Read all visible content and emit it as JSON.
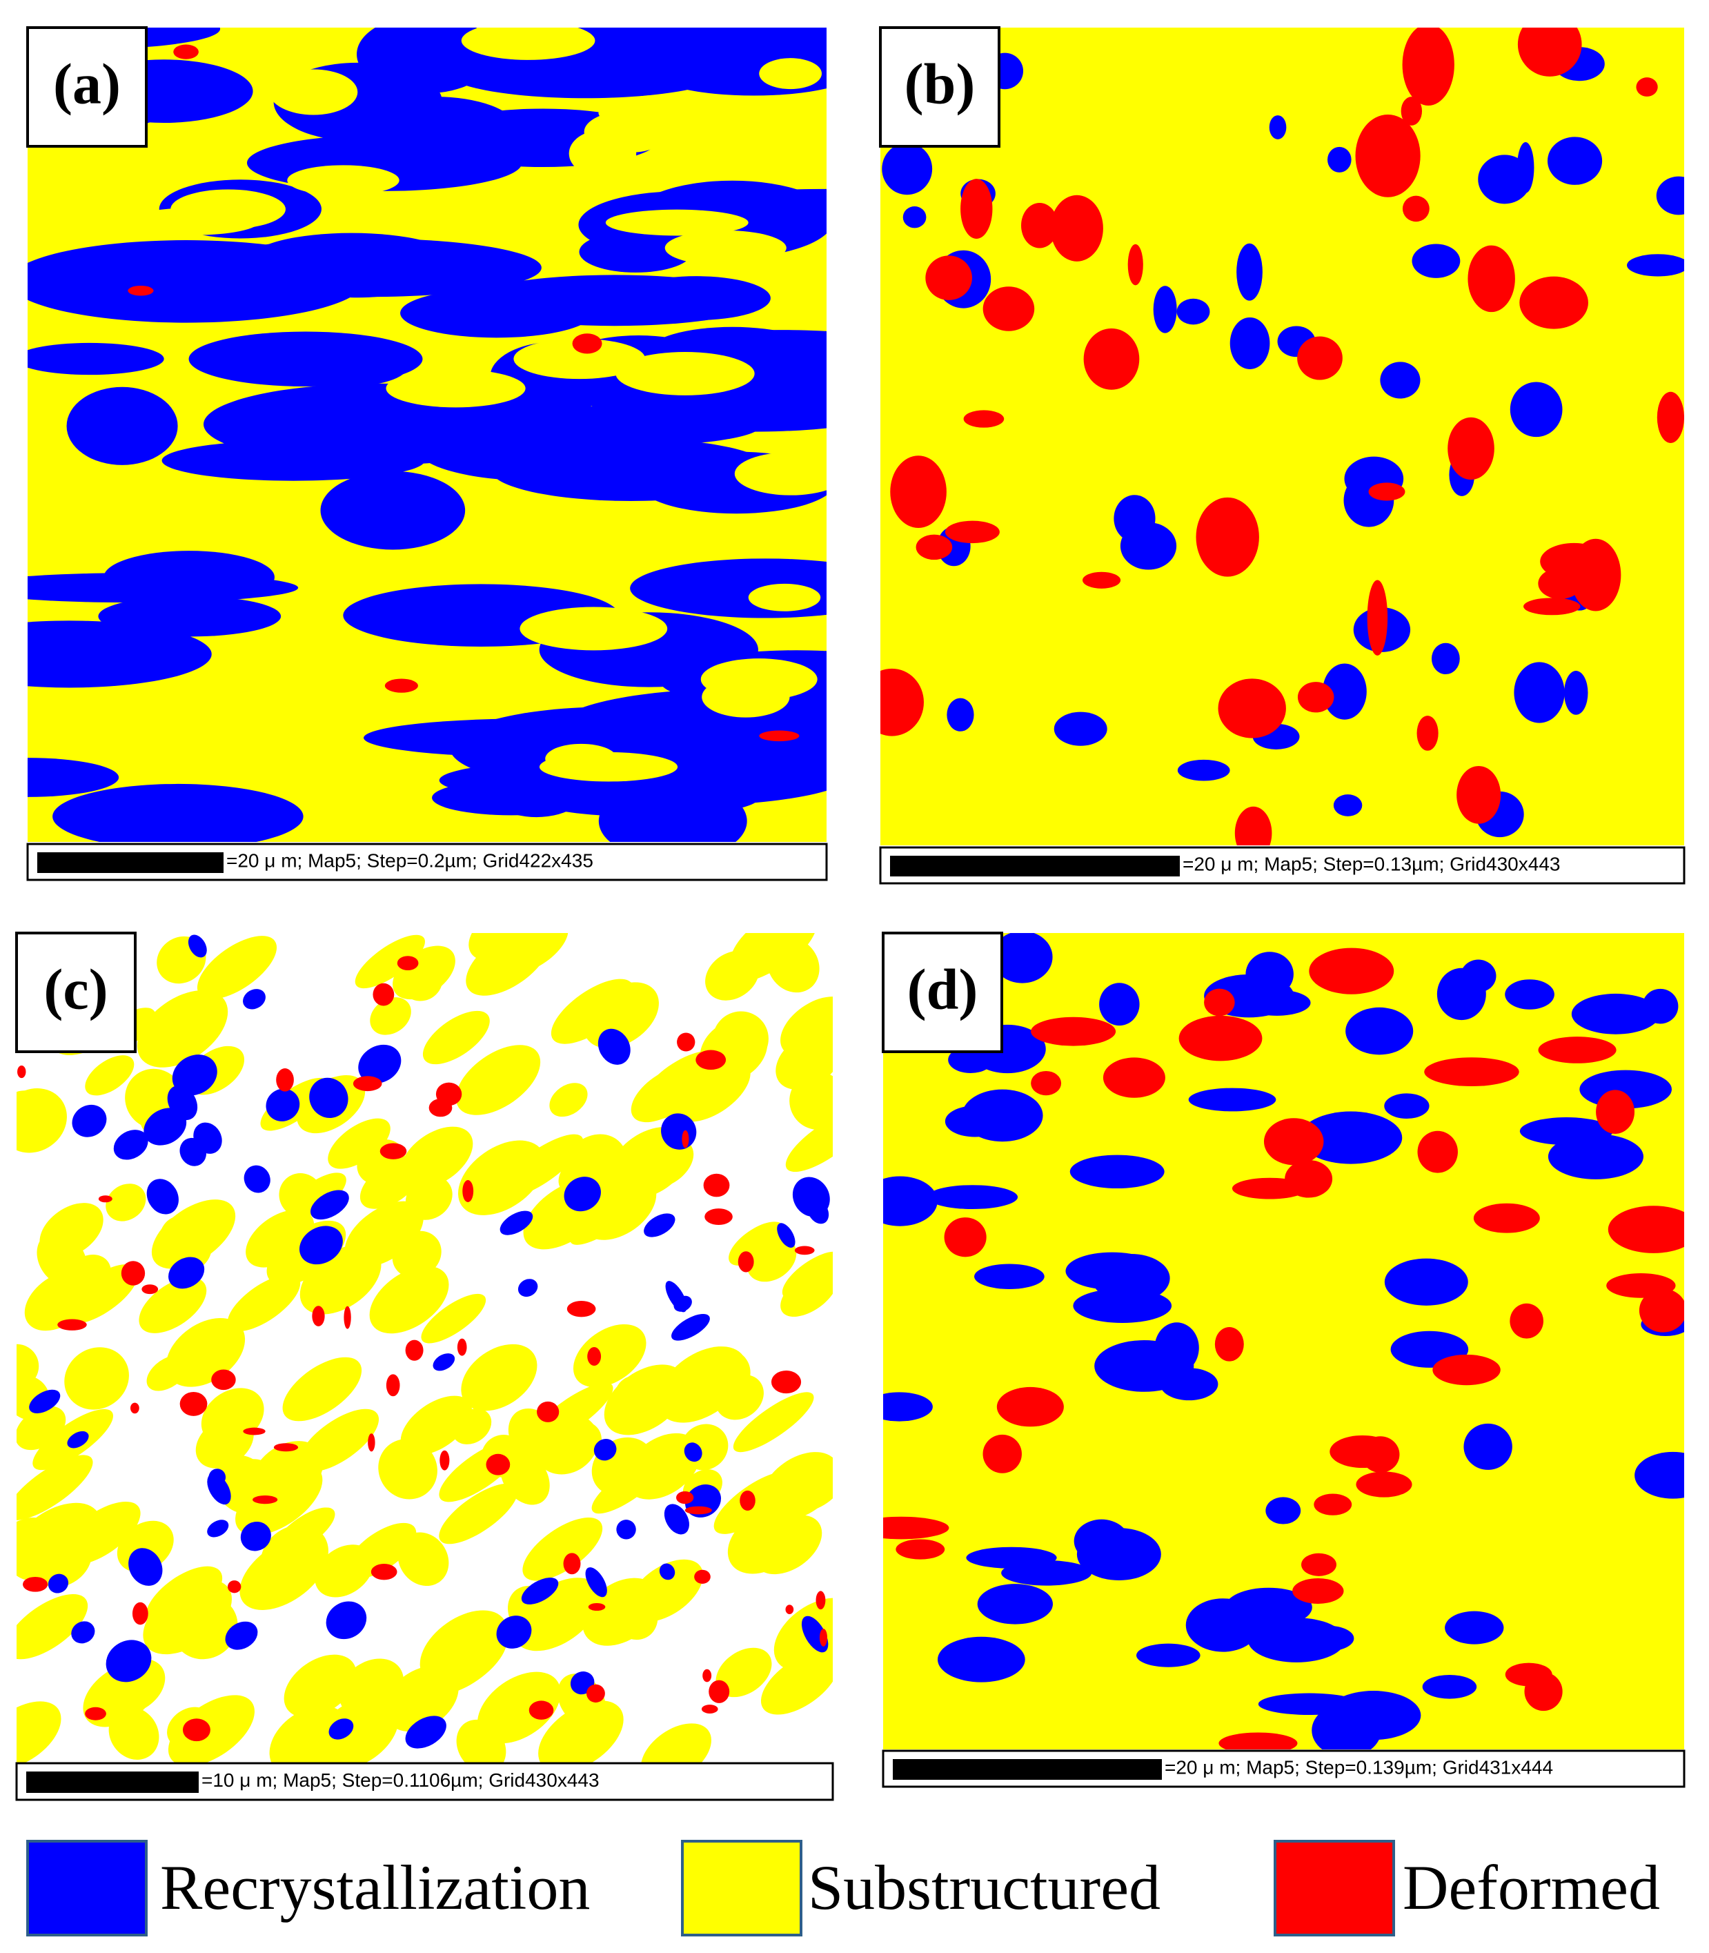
{
  "panels": [
    {
      "label": "(a)",
      "caption": "=20 μ m; Map5; Step=0.2µm; Grid422x435"
    },
    {
      "label": "(b)",
      "caption": "=20 μ m; Map5; Step=0.13µm; Grid430x443"
    },
    {
      "label": "(c)",
      "caption": "=10 μ m; Map5; Step=0.1106µm; Grid430x443"
    },
    {
      "label": "(d)",
      "caption": "=20 μ m; Map5; Step=0.139µm; Grid431x444"
    }
  ],
  "legend": [
    {
      "label": "Recrystallization",
      "color": "#0000ff"
    },
    {
      "label": "Substructured",
      "color": "#ffff00"
    },
    {
      "label": "Deformed",
      "color": "#ff0000"
    }
  ]
}
